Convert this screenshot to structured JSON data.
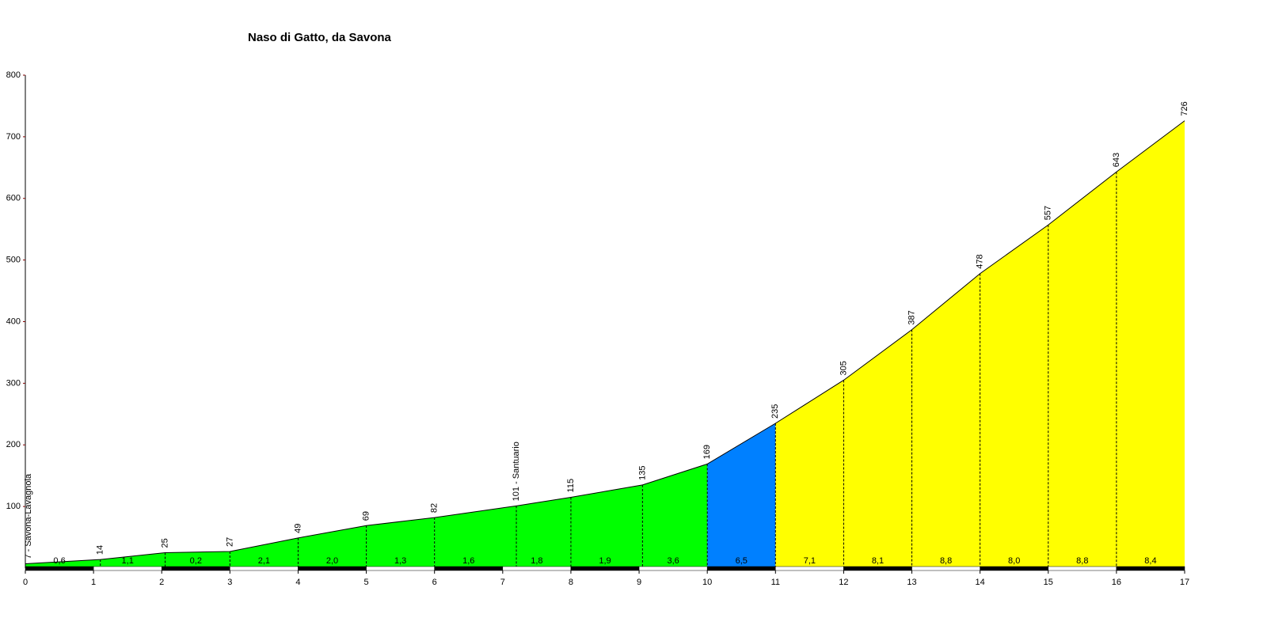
{
  "chart_data": {
    "type": "elevation-profile",
    "title": "Naso di Gatto, da Savona",
    "x": [
      0,
      1.1,
      2.05,
      3,
      4,
      5,
      6,
      7.2,
      8,
      9.05,
      10,
      11,
      12,
      13,
      14,
      15,
      16,
      17
    ],
    "values": [
      7,
      14,
      25,
      27,
      49,
      69,
      82,
      101,
      115,
      135,
      169,
      235,
      305,
      387,
      478,
      557,
      643,
      726
    ],
    "value_labels": [
      "7 - Savona-Lavagnola",
      "14",
      "25",
      "27",
      "49",
      "69",
      "82",
      "101 - Santuario",
      "115",
      "135",
      "169",
      "235",
      "305",
      "387",
      "478",
      "557",
      "643",
      "726"
    ],
    "gradient": {
      "values": [
        0.6,
        1.1,
        0.2,
        2.1,
        2.0,
        1.3,
        1.6,
        1.8,
        1.9,
        3.6,
        6.5,
        7.1,
        8.1,
        8.8,
        8.0,
        8.8,
        8.4
      ],
      "value_labels": [
        "0,6",
        "1,1",
        "0,2",
        "2,1",
        "2,0",
        "1,3",
        "1,6",
        "1,8",
        "1,9",
        "3,6",
        "6,5",
        "7,1",
        "8,1",
        "8,8",
        "8,0",
        "8,8",
        "8,4"
      ],
      "colors": [
        "#00ff00",
        "#00ff00",
        "#00ff00",
        "#00ff00",
        "#00ff00",
        "#00ff00",
        "#00ff00",
        "#00ff00",
        "#00ff00",
        "#00ff00",
        "#0080ff",
        "#ffff00",
        "#ffff00",
        "#ffff00",
        "#ffff00",
        "#ffff00",
        "#ffff00"
      ]
    },
    "xlim": [
      0,
      17
    ],
    "xticks": [
      0,
      1,
      2,
      3,
      4,
      5,
      6,
      7,
      8,
      9,
      10,
      11,
      12,
      13,
      14,
      15,
      16,
      17
    ],
    "ylim": [
      0,
      800
    ],
    "yticks": [
      100,
      200,
      300,
      400,
      500,
      600,
      700,
      800
    ]
  }
}
